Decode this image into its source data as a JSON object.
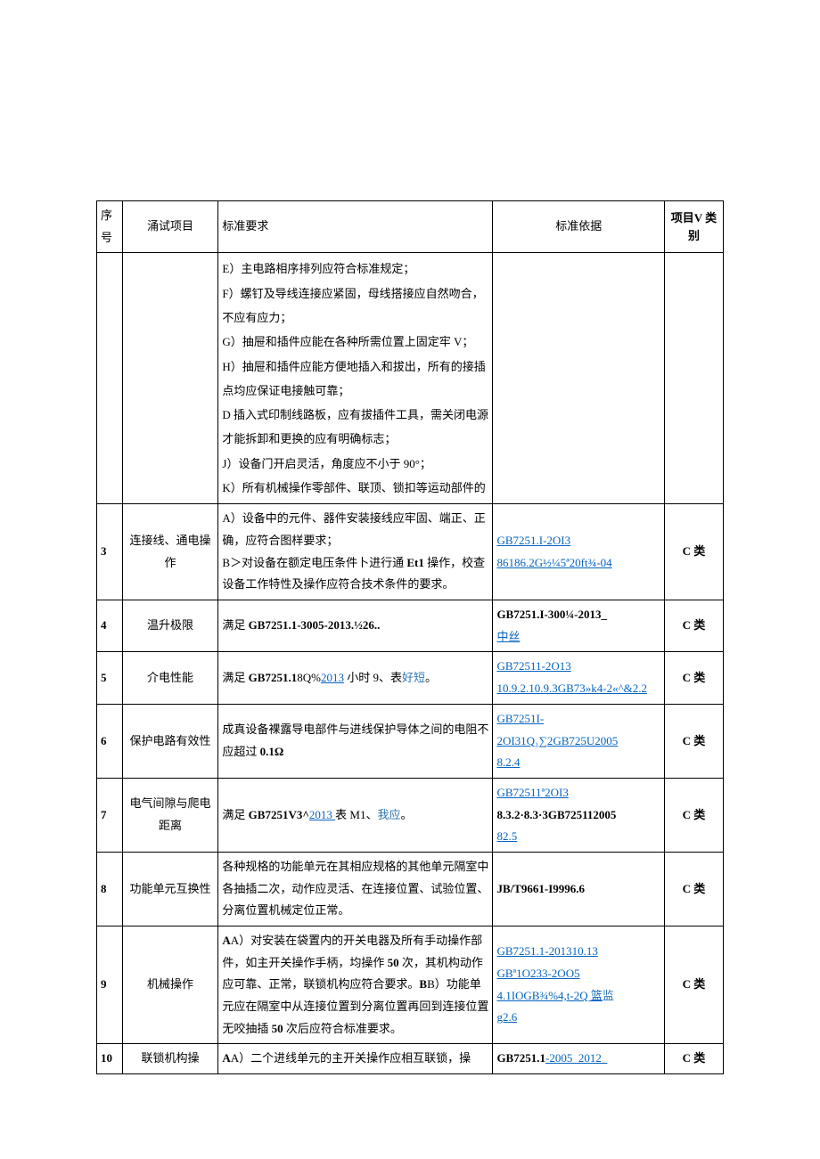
{
  "table": {
    "header": {
      "seq": "序号",
      "item": "涌试项目",
      "req": "标准要求",
      "basis": "标准依据",
      "cat": "项目V 类别"
    },
    "row_cont": {
      "e": "E）主电路相序排列应符合标准规定；",
      "f": "F）螺钉及导线连接应紧固，母线搭接应自然吻合，不应有应力；",
      "g": "G）抽屉和插件应能在各种所需位置上固定牢 V；",
      "h": "H）抽屉和插件应能方便地插入和拔出，所有的接插点均应保证电接触可靠；",
      "d": "D 插入式印制线路板，应有拔插件工具，需关闭电源才能拆卸和更换的应有明确标志；",
      "j": "J）设备门开启灵活，角度应不小于 90°；",
      "k": "K）所有机械操作零部件、联顶、锁扣等运动部件的"
    },
    "row3": {
      "seq": "3",
      "item": "连接线、通电操作",
      "req_a": "A）设备中的元件、器件安装接线应牢固、端正、正确，应符合图样要求；",
      "req_b_pre": "B＞对设备在额定电压条件卜进行通 ",
      "req_b_bold": "Et1",
      "req_b_post": " 操作，校查设备工作特性及操作应符合技术条件的要求。",
      "basis1": "GB7251.I-2OI3",
      "basis2": "86186.2G½¼5ª20ft¾-04",
      "cat": "C 类"
    },
    "row4": {
      "seq": "4",
      "item": "温升极限",
      "req_pre": "满足 ",
      "req_bold": "GB7251.1-3005-2013.½26..",
      "basis1": "GB7251.I-300¼-2013_",
      "basis2": "中丝",
      "cat": "C 类"
    },
    "row5": {
      "seq": "5",
      "item": "介电性能",
      "req_pre": "满足 ",
      "req_bold": "GB7251.1",
      "req_mid": "8Q%",
      "req_link": "2013",
      "req_post": " 小时 9、表",
      "req_end": "好短",
      "req_dot": "。",
      "basis1": "GB72511-2O13",
      "basis2": "10.9.2.10.9.3GB73»k4-2«^&2.2",
      "cat": "C 类"
    },
    "row6": {
      "seq": "6",
      "item": "保护电路有效性",
      "req": "成真设备裸露导电部件与进线保护导体之间的电阻不应超过 ",
      "req_bold": "0.1Ω",
      "basis1": "GB7251I-",
      "basis2": "2OI31Q₁∑2GB725U2005",
      "basis3": "8.2.4",
      "cat": "C 类"
    },
    "row7": {
      "seq": "7",
      "item": "电气间隙与爬电距离",
      "req_pre": "满足 ",
      "req_bold": "GB7251V3^",
      "req_link": "2013 ",
      "req_post1": "表 M1、",
      "req_post2": "我应",
      "req_dot": "。",
      "basis1": "GB72511ª2OI3",
      "basis2": "8.3.2·8.3·3GB725112005",
      "basis3": "82.5",
      "cat": "C 类"
    },
    "row8": {
      "seq": "8",
      "item": "功能单元互换性",
      "req": "各种规格的功能单元在其相应规格的其他单元隔室中各抽插二次，动作应灵活、在连接位置、试验位置、分离位置机械定位正常。",
      "basis": "JB/T9661-I9996.6",
      "cat": "C 类"
    },
    "row9": {
      "seq": "9",
      "item": "机械操作",
      "req_a_pre": "A）对安装在袋置内的开关电器及所有手动操作部件，如主开关操作手柄，均操作 ",
      "req_a_50": "50",
      "req_a_post": " 次，其机构动作应可靠、正常，联锁机构应符合要求。",
      "req_b_pre": "B）功能单元应在隔室中从连接位置到分离位置再回到连接位置无咬抽插 ",
      "req_b_50": "50",
      "req_b_post": " 次后应符合标准要求。",
      "basis1": "GB7251.1-201310.13",
      "basis2": "GBª1O233-2OO5",
      "basis3": "4.1IOGB¾%4,t-2Q 篮",
      "basis4": "监",
      "basis5": "g2.6",
      "cat": "C 类"
    },
    "row10": {
      "seq": "10",
      "item": "联锁机构操",
      "req_pre": "A）二个进线单元的主开关操作应相互联锁，操",
      "basis": "GB7251.1",
      "basis_post": "-2005_2012_",
      "cat": "C 类"
    }
  }
}
